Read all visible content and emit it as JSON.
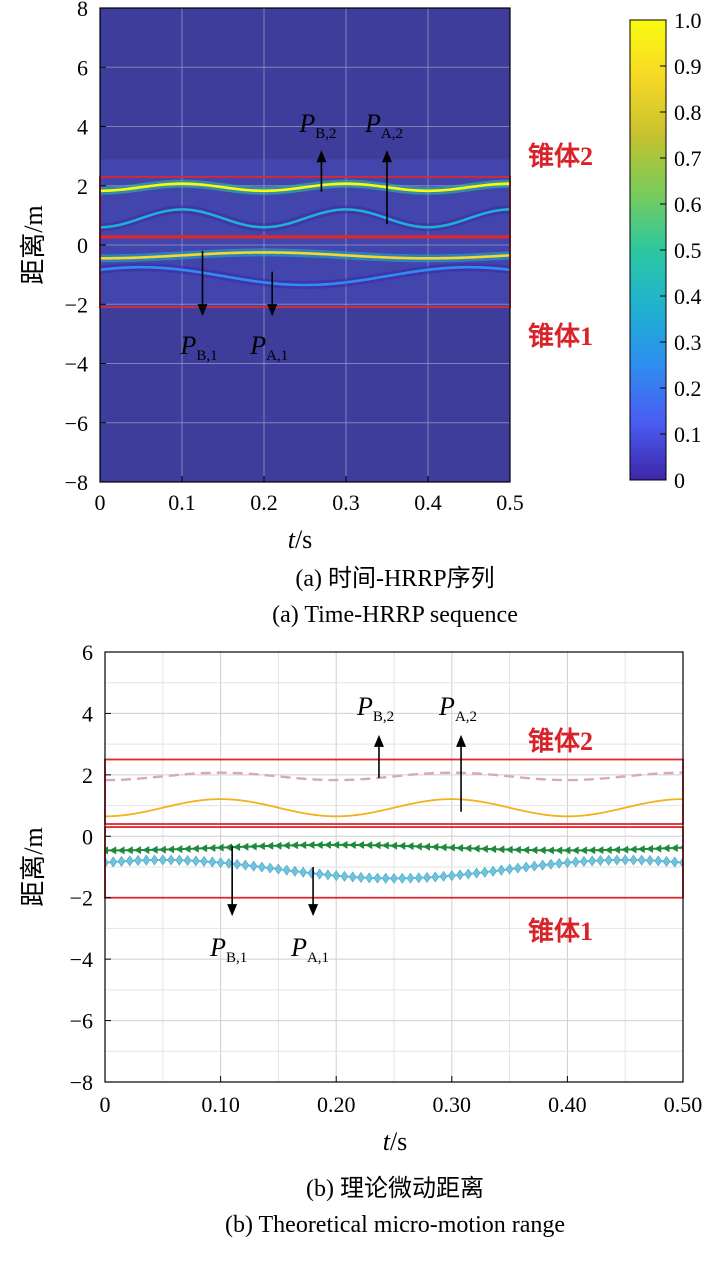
{
  "chart_data": [
    {
      "type": "heatmap",
      "title": "",
      "xlabel_var": "t",
      "xlabel_unit": "s",
      "ylabel": "距离/m",
      "xlim": [
        0,
        0.5
      ],
      "ylim": [
        -8,
        8
      ],
      "xticks": [
        0,
        0.1,
        0.2,
        0.3,
        0.4,
        0.5
      ],
      "xtick_labels": [
        "0",
        "0.1",
        "0.2",
        "0.3",
        "0.4",
        "0.5"
      ],
      "yticks": [
        8,
        6,
        4,
        2,
        0,
        -2,
        -4,
        -6,
        -8
      ],
      "ytick_labels": [
        "8",
        "6",
        "4",
        "2",
        "0",
        "−2",
        "−4",
        "−6",
        "−8"
      ],
      "grid": true,
      "colorbar": {
        "range": [
          0,
          1
        ],
        "ticks": [
          1.0,
          0.9,
          0.8,
          0.7,
          0.6,
          0.5,
          0.4,
          0.3,
          0.2,
          0.1,
          0
        ],
        "tick_labels": [
          "1.0",
          "0.9",
          "0.8",
          "0.7",
          "0.6",
          "0.5",
          "0.4",
          "0.3",
          "0.2",
          "0.1",
          "0"
        ],
        "colors": [
          "#3e26a8",
          "#4a5cf2",
          "#2e8df0",
          "#1fb2d0",
          "#2cc7a0",
          "#7acc5a",
          "#c6c22e",
          "#f7d826",
          "#f9fb0e"
        ]
      },
      "background_color": "#3e3d9c",
      "tracks": [
        {
          "name": "P_B,2",
          "offset": 1.95,
          "amplitude": 0.12,
          "phase_s": 0.05,
          "period_s": 0.2,
          "intensity": 0.95
        },
        {
          "name": "P_A,2",
          "offset": 0.9,
          "amplitude": 0.3,
          "phase_s": 0.05,
          "period_s": 0.2,
          "intensity": 0.35
        },
        {
          "name": "P_B,1",
          "offset": -0.35,
          "amplitude": 0.1,
          "phase_s": 0.1,
          "period_s": 0.4,
          "intensity": 0.85
        },
        {
          "name": "P_A,1",
          "offset": -1.05,
          "amplitude": 0.3,
          "phase_s": -0.05,
          "period_s": 0.4,
          "intensity": 0.3
        }
      ],
      "regions": [
        {
          "label": "锥体2",
          "t_range": [
            0,
            0.5
          ],
          "y_range": [
            0.3,
            2.3
          ]
        },
        {
          "label": "锥体1",
          "t_range": [
            0,
            0.5
          ],
          "y_range": [
            -2.1,
            0.25
          ]
        }
      ],
      "annotations": [
        {
          "label": "P",
          "sub": "B,2",
          "t": 0.27,
          "y_from": 1.8,
          "y_to": 3.2
        },
        {
          "label": "P",
          "sub": "A,2",
          "t": 0.35,
          "y_from": 0.7,
          "y_to": 3.2
        },
        {
          "label": "P",
          "sub": "B,1",
          "t": 0.125,
          "y_from": -0.2,
          "y_to": -2.4
        },
        {
          "label": "P",
          "sub": "A,1",
          "t": 0.21,
          "y_from": -0.9,
          "y_to": -2.4
        }
      ],
      "caption": [
        "(a) 时间-HRRP序列",
        "(a) Time-HRRP sequence"
      ]
    },
    {
      "type": "line",
      "title": "",
      "xlabel_var": "t",
      "xlabel_unit": "s",
      "ylabel": "距离/m",
      "xlim": [
        0,
        0.5
      ],
      "ylim": [
        -8,
        6
      ],
      "xticks": [
        0,
        0.1,
        0.2,
        0.3,
        0.4,
        0.5
      ],
      "xtick_labels": [
        "0",
        "0.10",
        "0.20",
        "0.30",
        "0.40",
        "0.50"
      ],
      "yticks": [
        6,
        4,
        2,
        0,
        -2,
        -4,
        -6,
        -8
      ],
      "ytick_labels": [
        "6",
        "4",
        "2",
        "0",
        "−2",
        "−4",
        "−6",
        "−8"
      ],
      "grid": true,
      "series": [
        {
          "id": "pb2",
          "offset": 1.95,
          "amplitude": 0.12,
          "phase_s": 0.05,
          "period_s": 0.2,
          "color": "#d9a6c9",
          "style": "dashed"
        },
        {
          "id": "pa2",
          "offset": 0.93,
          "amplitude": 0.28,
          "phase_s": 0.05,
          "period_s": 0.2,
          "color": "#f2b21c",
          "style": "solid"
        },
        {
          "id": "pb1",
          "offset": -0.37,
          "amplitude": 0.09,
          "phase_s": 0.1,
          "period_s": 0.4,
          "color": "#1f8a3c",
          "style": "marker-triangle"
        },
        {
          "id": "pa1",
          "offset": -1.07,
          "amplitude": 0.3,
          "phase_s": -0.05,
          "period_s": 0.4,
          "color": "#6fc3dc",
          "style": "marker-diamond"
        }
      ],
      "regions": [
        {
          "label": "锥体2",
          "t_range": [
            0,
            0.5
          ],
          "y_range": [
            0.4,
            2.5
          ]
        },
        {
          "label": "锥体1",
          "t_range": [
            0,
            0.5
          ],
          "y_range": [
            -2.0,
            0.3
          ]
        }
      ],
      "annotations": [
        {
          "label": "P",
          "sub": "B,2",
          "t": 0.237,
          "y_from": 1.9,
          "y_to": 3.3
        },
        {
          "label": "P",
          "sub": "A,2",
          "t": 0.308,
          "y_from": 0.8,
          "y_to": 3.3
        },
        {
          "label": "P",
          "sub": "B,1",
          "t": 0.11,
          "y_from": -0.3,
          "y_to": -2.6
        },
        {
          "label": "P",
          "sub": "A,1",
          "t": 0.18,
          "y_from": -1.0,
          "y_to": -2.6
        }
      ],
      "caption": [
        "(b) 理论微动距离",
        "(b) Theoretical micro-motion range"
      ]
    }
  ]
}
